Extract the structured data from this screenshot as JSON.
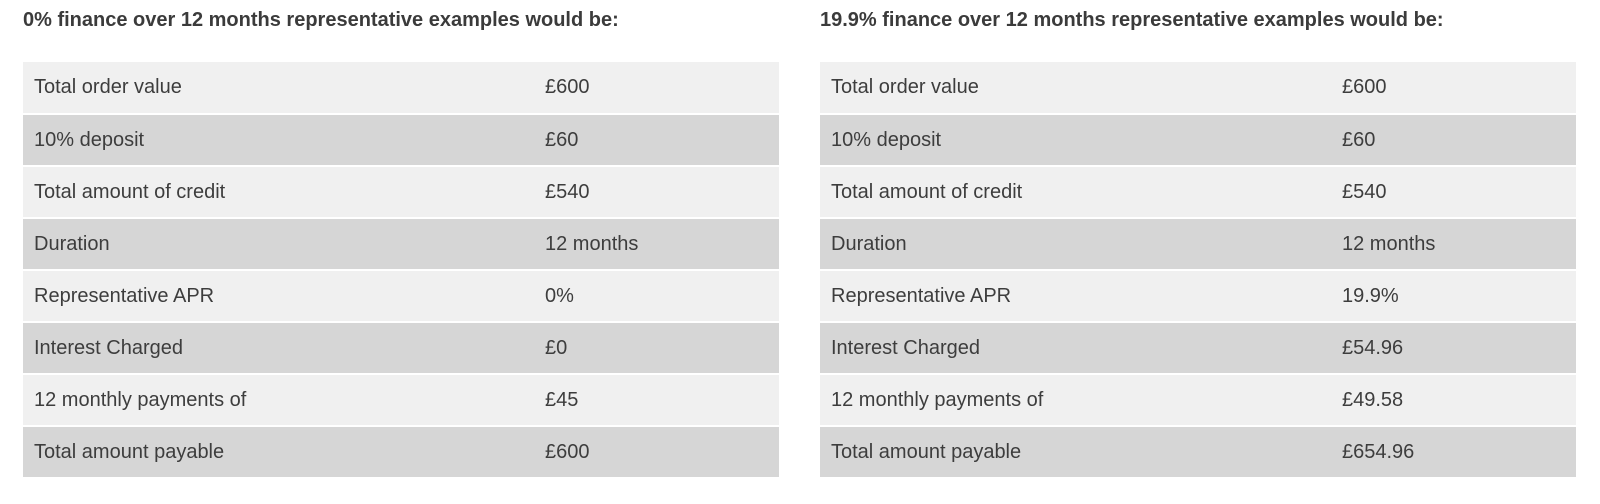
{
  "left_table": {
    "title": "0% finance over 12 months representative examples would be:",
    "rows": [
      {
        "label": "Total order value",
        "value": "£600"
      },
      {
        "label": "10% deposit",
        "value": "£60"
      },
      {
        "label": "Total amount of credit",
        "value": "£540"
      },
      {
        "label": "Duration",
        "value": "12 months"
      },
      {
        "label": "Representative APR",
        "value": "0%"
      },
      {
        "label": "Interest Charged",
        "value": "£0"
      },
      {
        "label": "12 monthly payments of",
        "value": "£45"
      },
      {
        "label": "Total amount payable",
        "value": "£600"
      }
    ]
  },
  "right_table": {
    "title": "19.9% finance over 12 months representative examples would be:",
    "rows": [
      {
        "label": "Total order value",
        "value": "£600"
      },
      {
        "label": "10% deposit",
        "value": "£60"
      },
      {
        "label": "Total amount of credit",
        "value": "£540"
      },
      {
        "label": "Duration",
        "value": "12 months"
      },
      {
        "label": "Representative APR",
        "value": "19.9%"
      },
      {
        "label": "Interest Charged",
        "value": "£54.96"
      },
      {
        "label": "12 monthly payments of",
        "value": "£49.58"
      },
      {
        "label": "Total amount payable",
        "value": "£654.96"
      }
    ]
  },
  "colors": {
    "row_light": "#f0f0f0",
    "row_dark": "#d6d6d6",
    "text": "#3d3d3d"
  }
}
